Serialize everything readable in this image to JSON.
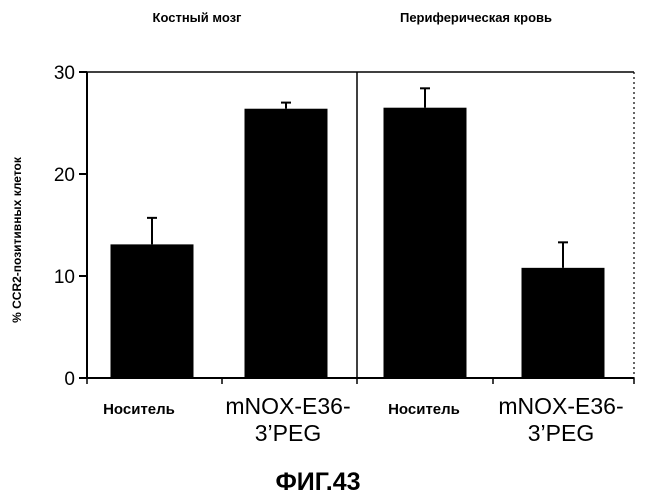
{
  "chart_data": {
    "type": "bar",
    "ylabel": "% CCR2-позитивных клеток",
    "ylim": [
      0,
      30
    ],
    "yticks": [
      0,
      10,
      20,
      30
    ],
    "grid": false,
    "bar_color": "#000000",
    "panels": [
      {
        "title": "Костный мозг",
        "categories": [
          "Носитель",
          "mNOX-E36-3'PEG"
        ],
        "category_display": [
          [
            "Носитель"
          ],
          [
            "mNOX-E36-",
            "3’PEG"
          ]
        ],
        "values": [
          13.1,
          26.4
        ],
        "errors": [
          2.6,
          0.6
        ]
      },
      {
        "title": "Периферическая кровь",
        "categories": [
          "Носитель",
          "mNOX-E36-3'PEG"
        ],
        "category_display": [
          [
            "Носитель"
          ],
          [
            "mNOX-E36-",
            "3’PEG"
          ]
        ],
        "values": [
          26.5,
          10.8
        ],
        "errors": [
          1.9,
          2.5
        ]
      }
    ]
  },
  "figure_caption": "ФИГ.43"
}
